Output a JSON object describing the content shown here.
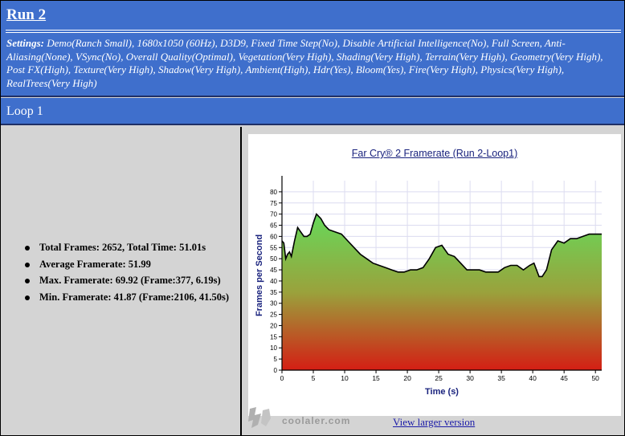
{
  "header": {
    "run_title": "Run 2",
    "settings_label": "Settings:",
    "settings_text": " Demo(Ranch Small), 1680x1050 (60Hz), D3D9, Fixed Time Step(No), Disable Artificial Intelligence(No), Full Screen, Anti-Aliasing(None), VSync(No), Overall Quality(Optimal), Vegetation(Very High), Shading(Very High), Terrain(Very High), Geometry(Very High), Post FX(High), Texture(Very High), Shadow(Very High), Ambient(High), Hdr(Yes), Bloom(Yes), Fire(Very High), Physics(Very High), RealTrees(Very High)"
  },
  "loop": {
    "title": "Loop 1"
  },
  "stats": [
    {
      "text": "Total Frames: 2652, Total Time: 51.01s"
    },
    {
      "text": "Average Framerate: 51.99"
    },
    {
      "text": "Max. Framerate: 69.92 (Frame:377, 6.19s)"
    },
    {
      "text": "Min. Framerate: 41.87 (Frame:2106, 41.50s)"
    }
  ],
  "link": {
    "text": "View larger version"
  },
  "watermark": {
    "text": "coolaler.com"
  },
  "colors": {
    "header_bg": "#3f6fcc",
    "fill_top": "#66d95a",
    "fill_bottom": "#d41e14",
    "line": "#000000"
  },
  "chart_data": {
    "type": "area",
    "title": "Far Cry® 2 Framerate (Run 2-Loop1)",
    "xlabel": "Time (s)",
    "ylabel": "Frames per Second",
    "xlim": [
      0,
      51
    ],
    "ylim": [
      0,
      85
    ],
    "xticks": [
      0,
      5,
      10,
      15,
      20,
      25,
      30,
      35,
      40,
      45,
      50
    ],
    "yticks": [
      0,
      5,
      10,
      15,
      20,
      25,
      30,
      35,
      40,
      45,
      50,
      55,
      60,
      65,
      70,
      75,
      80
    ],
    "grid": true,
    "x": [
      0,
      0.3,
      0.6,
      0.9,
      1.2,
      1.5,
      2,
      2.5,
      3,
      3.5,
      4,
      4.5,
      5,
      5.5,
      6.2,
      6.8,
      7.5,
      8.5,
      9.5,
      10.5,
      11.5,
      12.5,
      13.5,
      14.5,
      15.5,
      16.5,
      17.5,
      18.5,
      19.5,
      20.5,
      21.5,
      22.5,
      23.5,
      24.5,
      25.5,
      26.5,
      27.5,
      28.5,
      29.5,
      30.5,
      31.5,
      32.5,
      33.5,
      34.5,
      35.5,
      36.5,
      37.5,
      38.5,
      39.5,
      40.2,
      41,
      41.5,
      42.2,
      43,
      44,
      45,
      46,
      47,
      48,
      49,
      50,
      51
    ],
    "y": [
      58,
      57,
      50,
      52,
      53,
      51,
      58,
      64,
      62,
      60,
      60,
      61,
      66,
      70,
      68,
      65,
      63,
      62,
      61,
      58,
      55,
      52,
      50,
      48,
      47,
      46,
      45,
      44,
      44,
      45,
      45,
      46,
      50,
      55,
      56,
      52,
      51,
      48,
      45,
      45,
      45,
      44,
      44,
      44,
      46,
      47,
      47,
      45,
      47,
      48,
      42,
      42,
      45,
      54,
      58,
      57,
      59,
      59,
      60,
      61,
      61,
      61
    ]
  }
}
